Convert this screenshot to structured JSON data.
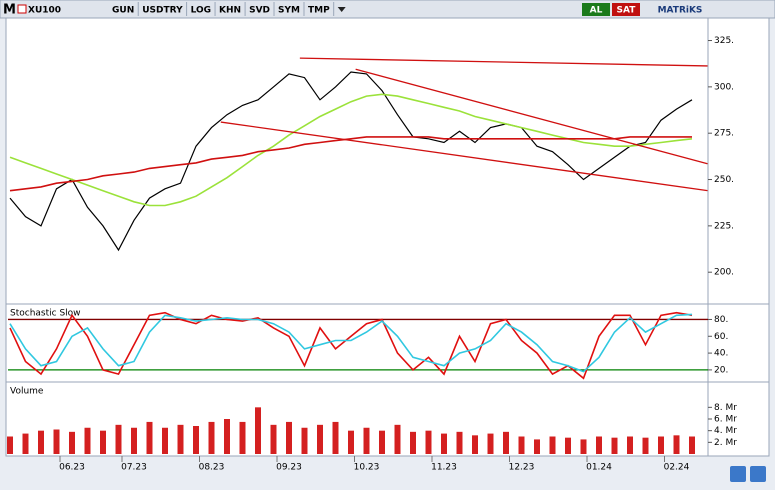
{
  "toolbar": {
    "logo": "M",
    "symbol": "XU100",
    "buttons": [
      "GUN",
      "USDTRY",
      "LOG",
      "KHN",
      "SVD",
      "SYM",
      "TMP"
    ],
    "buy": "AL",
    "sell": "SAT",
    "brand": "MATRiKS"
  },
  "chart_data": [
    {
      "type": "line",
      "title": "XU100",
      "ylim": [
        185,
        335
      ],
      "yticks": [
        {
          "value": 200,
          "label": "200."
        },
        {
          "value": 225,
          "label": "225."
        },
        {
          "value": 250,
          "label": "250."
        },
        {
          "value": 275,
          "label": "275."
        },
        {
          "value": 300,
          "label": "300."
        },
        {
          "value": 325,
          "label": "325."
        }
      ],
      "series": [
        {
          "color": "#000000",
          "values": [
            240,
            230,
            225,
            245,
            250,
            235,
            225,
            212,
            228,
            240,
            245,
            248,
            268,
            278,
            285,
            290,
            293,
            300,
            307,
            305,
            293,
            300,
            308,
            307,
            298,
            285,
            273,
            272,
            270,
            276,
            270,
            278,
            280,
            278,
            268,
            265,
            258,
            250,
            256,
            262,
            268,
            270,
            282,
            288,
            293
          ]
        },
        {
          "color": "#9be23a",
          "values": [
            262,
            259,
            256,
            253,
            250,
            247,
            244,
            241,
            238,
            236,
            236,
            238,
            241,
            246,
            251,
            257,
            263,
            268,
            274,
            279,
            284,
            288,
            292,
            295,
            296,
            295,
            293,
            291,
            289,
            287,
            284,
            282,
            280,
            278,
            276,
            274,
            272,
            270,
            269,
            268,
            268,
            269,
            270,
            271,
            272
          ]
        },
        {
          "color": "#d01010",
          "values": [
            244,
            245,
            246,
            248,
            249,
            250,
            252,
            253,
            254,
            256,
            257,
            258,
            259,
            261,
            262,
            263,
            265,
            266,
            267,
            269,
            270,
            271,
            272,
            273,
            273,
            273,
            273,
            273,
            272,
            272,
            272,
            272,
            272,
            272,
            272,
            272,
            272,
            272,
            272,
            272,
            273,
            273,
            273,
            273,
            273
          ]
        }
      ],
      "trendlines": [
        {
          "color": "#d01010",
          "start": [
            18.7,
            315.5
          ],
          "end": [
            45,
            311.3
          ]
        },
        {
          "color": "#d01010",
          "start": [
            22.3,
            309.5
          ],
          "end": [
            45,
            258.5
          ]
        },
        {
          "color": "#d01010",
          "start": [
            13.6,
            281
          ],
          "end": [
            45,
            244
          ]
        }
      ]
    },
    {
      "type": "line",
      "title": "Stochastic Slow",
      "ylim": [
        8,
        96
      ],
      "yticks": [
        {
          "value": 20,
          "label": "20."
        },
        {
          "value": 40,
          "label": "40."
        },
        {
          "value": 60,
          "label": "60."
        },
        {
          "value": 80,
          "label": "80."
        }
      ],
      "levels": [
        {
          "value": 80,
          "color": "#800000"
        },
        {
          "value": 20,
          "color": "#008000"
        }
      ],
      "series": [
        {
          "color": "#e01010",
          "values": [
            70,
            30,
            15,
            45,
            85,
            60,
            20,
            15,
            50,
            85,
            88,
            80,
            75,
            85,
            80,
            78,
            82,
            70,
            60,
            25,
            70,
            45,
            60,
            75,
            80,
            40,
            20,
            35,
            15,
            60,
            30,
            75,
            80,
            55,
            40,
            15,
            25,
            10,
            60,
            85,
            85,
            50,
            85,
            88,
            85
          ]
        },
        {
          "color": "#30c8e0",
          "values": [
            75,
            45,
            25,
            30,
            60,
            70,
            45,
            25,
            30,
            65,
            85,
            82,
            78,
            80,
            82,
            80,
            80,
            75,
            65,
            45,
            50,
            55,
            55,
            65,
            78,
            60,
            35,
            30,
            25,
            40,
            45,
            55,
            75,
            65,
            50,
            30,
            25,
            18,
            35,
            65,
            82,
            65,
            75,
            85,
            86
          ]
        }
      ]
    },
    {
      "type": "bar",
      "title": "Volume",
      "color": "#d42020",
      "ylim": [
        0,
        12
      ],
      "yticks": [
        {
          "value": 2,
          "label": "2. Mr"
        },
        {
          "value": 4,
          "label": "4. Mr"
        },
        {
          "value": 6,
          "label": "6. Mr"
        },
        {
          "value": 8,
          "label": "8. Mr"
        }
      ],
      "values": [
        3,
        3.5,
        4,
        4.2,
        3.8,
        4.5,
        4,
        5,
        4.5,
        5.5,
        4.5,
        5,
        4.8,
        5.5,
        6,
        5.5,
        8,
        5,
        5.5,
        4.5,
        5,
        5.5,
        4,
        4.5,
        4,
        5,
        3.8,
        4,
        3.5,
        3.8,
        3.2,
        3.5,
        3.8,
        3,
        2.5,
        3,
        2.8,
        2.5,
        3,
        2.8,
        3,
        2.8,
        3,
        3.2,
        3
      ],
      "categories": [
        null,
        null,
        null,
        null,
        "06.23",
        null,
        null,
        null,
        "07.23",
        null,
        null,
        null,
        null,
        "08.23",
        null,
        null,
        null,
        null,
        "09.23",
        null,
        null,
        null,
        null,
        "10.23",
        null,
        null,
        null,
        null,
        "11.23",
        null,
        null,
        null,
        null,
        "12.23",
        null,
        null,
        null,
        null,
        "01.24",
        null,
        null,
        null,
        null,
        "02.24",
        null
      ]
    }
  ]
}
